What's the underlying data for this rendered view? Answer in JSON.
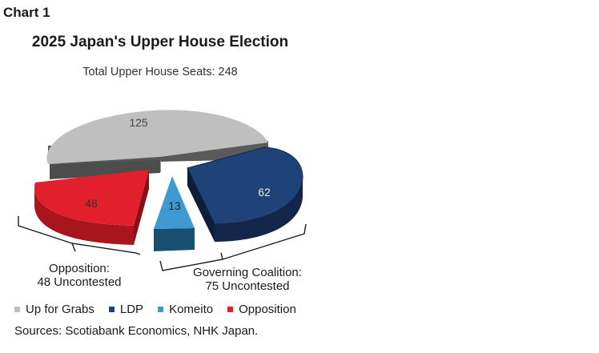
{
  "header": {
    "chart_label": "Chart 1"
  },
  "chart_data": {
    "type": "pie",
    "title": "2025 Japan's Upper House Election",
    "subtitle": "Total Upper House Seats: 248",
    "slices": [
      {
        "name": "Up for Grabs",
        "value": 125,
        "color": "#bfbfbf"
      },
      {
        "name": "LDP",
        "value": 62,
        "color": "#1f4379"
      },
      {
        "name": "Komeito",
        "value": 13,
        "color": "#3f9ad3"
      },
      {
        "name": "Opposition",
        "value": 48,
        "color": "#e21f2c"
      }
    ],
    "annotations": {
      "opposition": [
        "Opposition:",
        "48 Uncontested"
      ],
      "coalition": [
        "Governing Coalition:",
        "75 Uncontested"
      ]
    },
    "legend_position": "bottom-left",
    "source": "Sources: Scotiabank Economics, NHK Japan."
  }
}
